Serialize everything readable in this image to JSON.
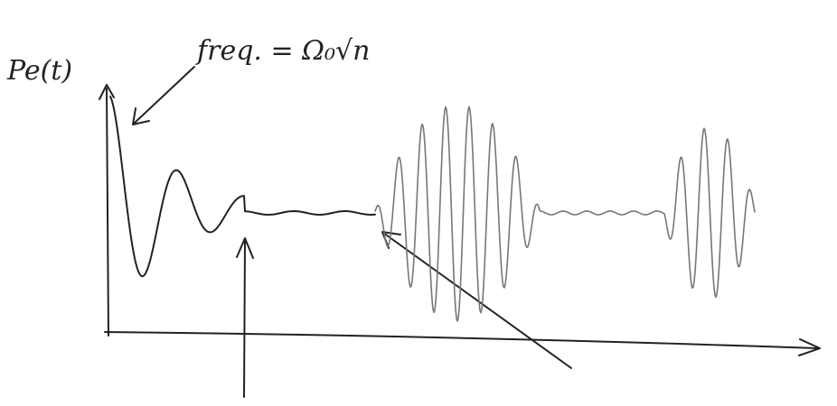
{
  "axis_label": "Pe(t)",
  "annotation": "freq. = Ω₀√n"
}
